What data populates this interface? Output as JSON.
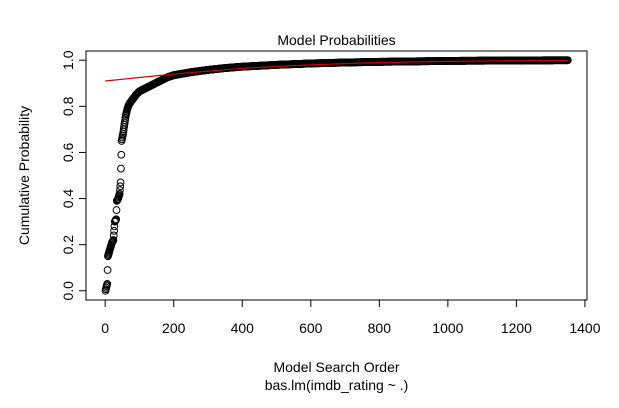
{
  "chart_data": {
    "type": "scatter",
    "title": "Model Probabilities",
    "xlabel": "Model Search Order",
    "sublabel": "bas.lm(imdb_rating ~ .)",
    "ylabel": "Cumulative Probability",
    "xlim": [
      0,
      1400
    ],
    "ylim": [
      0,
      1
    ],
    "xticks": [
      0,
      200,
      400,
      600,
      800,
      1000,
      1200,
      1400
    ],
    "yticks": [
      0.0,
      0.2,
      0.4,
      0.6,
      0.8,
      1.0
    ],
    "xtick_labels": [
      "0",
      "200",
      "400",
      "600",
      "800",
      "1000",
      "1200",
      "1400"
    ],
    "ytick_labels": [
      "0.0",
      "0.2",
      "0.4",
      "0.6",
      "0.8",
      "1.0"
    ],
    "n_models": 1350,
    "curve_anchor_points": [
      [
        1,
        0.0
      ],
      [
        4,
        0.02
      ],
      [
        6,
        0.03
      ],
      [
        8,
        0.15
      ],
      [
        12,
        0.17
      ],
      [
        16,
        0.19
      ],
      [
        20,
        0.21
      ],
      [
        24,
        0.22
      ],
      [
        28,
        0.3
      ],
      [
        32,
        0.31
      ],
      [
        34,
        0.39
      ],
      [
        38,
        0.4
      ],
      [
        42,
        0.42
      ],
      [
        45,
        0.47
      ],
      [
        48,
        0.65
      ],
      [
        52,
        0.68
      ],
      [
        56,
        0.72
      ],
      [
        60,
        0.76
      ],
      [
        65,
        0.79
      ],
      [
        70,
        0.81
      ],
      [
        80,
        0.83
      ],
      [
        90,
        0.85
      ],
      [
        100,
        0.865
      ],
      [
        120,
        0.88
      ],
      [
        140,
        0.895
      ],
      [
        160,
        0.91
      ],
      [
        180,
        0.925
      ],
      [
        200,
        0.935
      ],
      [
        250,
        0.948
      ],
      [
        300,
        0.958
      ],
      [
        350,
        0.966
      ],
      [
        400,
        0.972
      ],
      [
        500,
        0.98
      ],
      [
        600,
        0.986
      ],
      [
        700,
        0.99
      ],
      [
        800,
        0.993
      ],
      [
        900,
        0.995
      ],
      [
        1000,
        0.997
      ],
      [
        1100,
        0.998
      ],
      [
        1200,
        0.999
      ],
      [
        1350,
        1.0
      ]
    ],
    "smooth_line": {
      "color": "#cc0000",
      "points": [
        [
          0,
          0.91
        ],
        [
          100,
          0.925
        ],
        [
          200,
          0.94
        ],
        [
          400,
          0.965
        ],
        [
          600,
          0.98
        ],
        [
          800,
          0.99
        ],
        [
          1000,
          0.995
        ],
        [
          1200,
          0.998
        ],
        [
          1350,
          0.999
        ]
      ]
    },
    "point_color": "#000000",
    "grid": false,
    "legend": "none"
  }
}
